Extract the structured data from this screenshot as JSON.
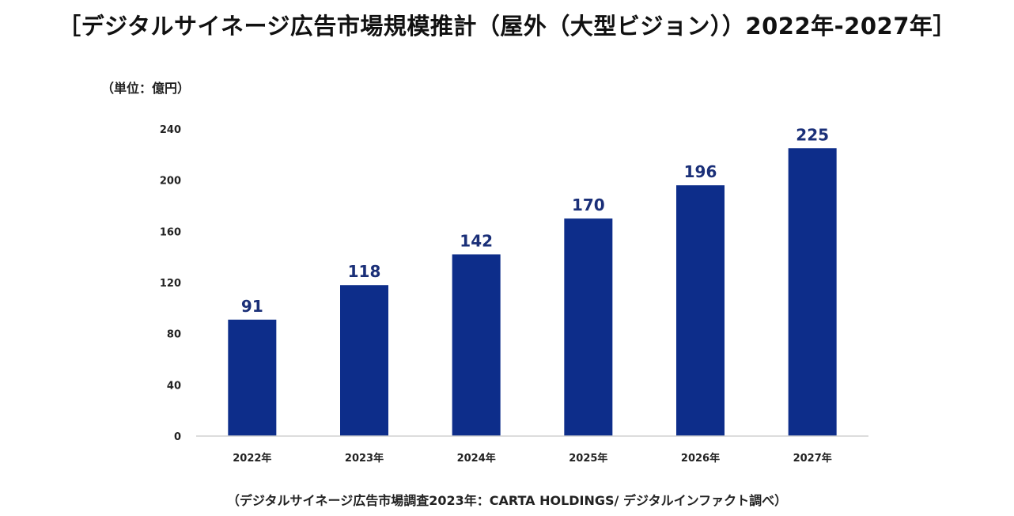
{
  "title": "［デジタルサイネージ広告市場規模推計（屋外（大型ビジョン））2022年-2027年］",
  "unit_label": "（単位：億円）",
  "source": "（デジタルサイネージ広告市場調査2023年：CARTA HOLDINGS/ デジタルインファクト調べ）",
  "colors": {
    "bar": "#0d2d8a",
    "value_label": "#1a2f78",
    "axis": "#d0d0d0"
  },
  "chart_data": {
    "type": "bar",
    "categories": [
      "2022年",
      "2023年",
      "2024年",
      "2025年",
      "2026年",
      "2027年"
    ],
    "values": [
      91,
      118,
      142,
      170,
      196,
      225
    ],
    "y_ticks": [
      0,
      40,
      80,
      120,
      160,
      200,
      240
    ],
    "ylim": [
      0,
      240
    ],
    "grid": false,
    "legend": "none"
  }
}
